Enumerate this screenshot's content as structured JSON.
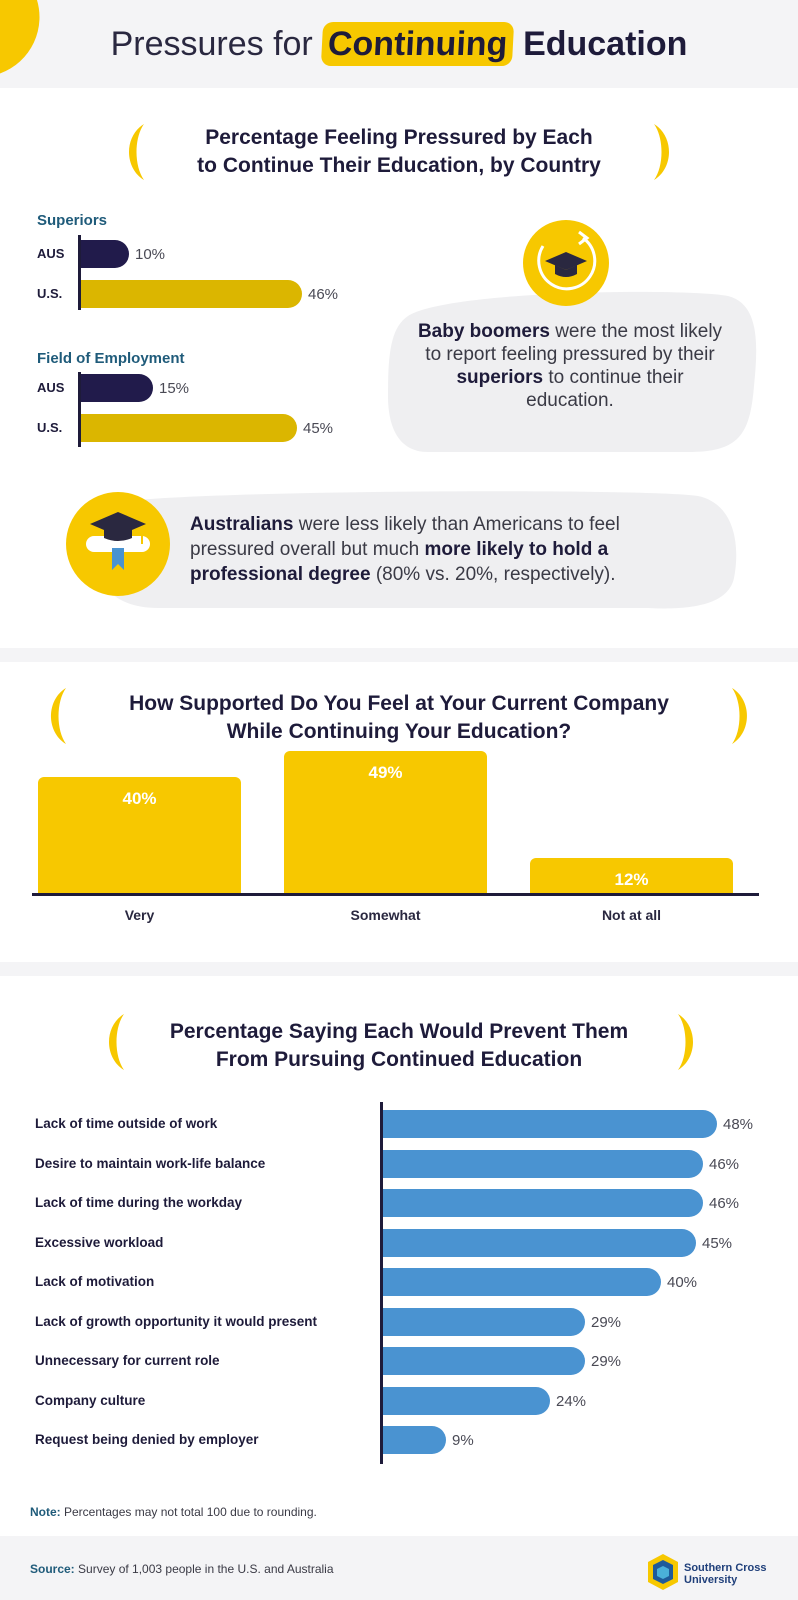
{
  "header": {
    "title_pre": "Pressures for",
    "title_highlight": "Continuing",
    "title_post": "Education"
  },
  "section1": {
    "title_line1": "Percentage Feeling Pressured by Each",
    "title_line2": "to Continue Their Education, by Country",
    "callout_right": {
      "b1": "Baby boomers",
      "t1": " were the most likely to report feeling pressured by their ",
      "b2": "superiors",
      "t2": " to continue their education."
    },
    "callout_bottom": {
      "b1": "Australians",
      "t1": " were less likely than Americans to feel pressured overall but much ",
      "b2": "more likely to hold a professional degree",
      "t2": " (80% vs. 20%, respectively)."
    }
  },
  "section2": {
    "title_line1": "How Supported Do You Feel at Your Current Company",
    "title_line2": "While Continuing Your Education?"
  },
  "section3": {
    "title_line1": "Percentage Saying Each Would Prevent Them",
    "title_line2": "From Pursuing Continued Education"
  },
  "footer": {
    "note_label": "Note:",
    "note_text": " Percentages may not total 100 due to rounding.",
    "source_label": "Source:",
    "source_text": " Survey of 1,003 people in the U.S. and Australia",
    "logo_line1": "Southern Cross",
    "logo_line2": "University"
  },
  "colors": {
    "accent": "#f7c800",
    "dark_navy": "#211b4b",
    "us_gold": "#dbb600",
    "blue_bar": "#4a93d1"
  },
  "icons": [
    "graduation-cap-refresh-icon",
    "graduation-cap-diploma-icon"
  ],
  "chart_data": [
    {
      "type": "bar",
      "orientation": "horizontal",
      "title": "Superiors",
      "categories": [
        "AUS",
        "U.S."
      ],
      "values": [
        10,
        46
      ],
      "labels": [
        "10%",
        "46%"
      ],
      "xlim": [
        0,
        100
      ]
    },
    {
      "type": "bar",
      "orientation": "horizontal",
      "title": "Field of Employment",
      "categories": [
        "AUS",
        "U.S."
      ],
      "values": [
        15,
        45
      ],
      "labels": [
        "15%",
        "45%"
      ],
      "xlim": [
        0,
        100
      ]
    },
    {
      "type": "bar",
      "orientation": "vertical",
      "title": "How Supported Do You Feel at Your Current Company While Continuing Your Education?",
      "categories": [
        "Very",
        "Somewhat",
        "Not at all"
      ],
      "values": [
        40,
        49,
        12
      ],
      "labels": [
        "40%",
        "49%",
        "12%"
      ],
      "ylim": [
        0,
        50
      ]
    },
    {
      "type": "bar",
      "orientation": "horizontal",
      "title": "Percentage Saying Each Would Prevent Them From Pursuing Continued Education",
      "categories": [
        "Lack of time outside of work",
        "Desire to maintain work-life balance",
        "Lack of time during the workday",
        "Excessive workload",
        "Lack of motivation",
        "Lack of growth opportunity it would present",
        "Unnecessary for current role",
        "Company culture",
        "Request being denied by employer"
      ],
      "values": [
        48,
        46,
        46,
        45,
        40,
        29,
        29,
        24,
        9
      ],
      "labels": [
        "48%",
        "46%",
        "46%",
        "45%",
        "40%",
        "29%",
        "29%",
        "24%",
        "9%"
      ],
      "xlim": [
        0,
        48
      ]
    }
  ]
}
